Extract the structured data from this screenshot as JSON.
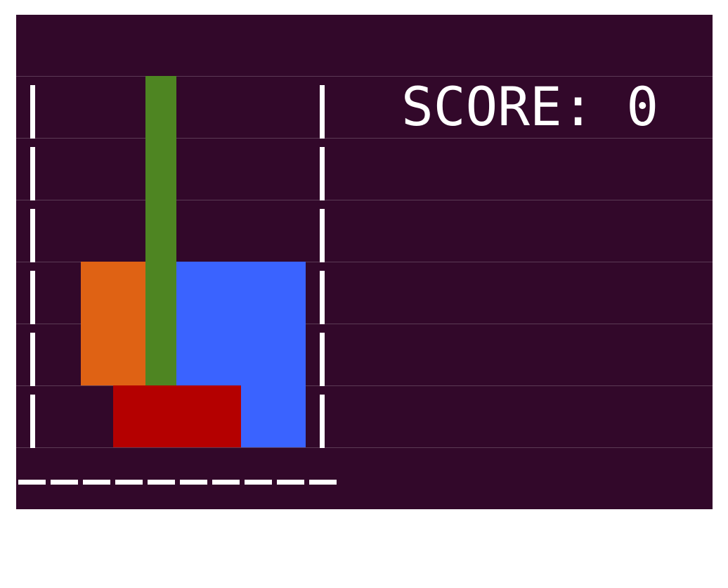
{
  "score": {
    "label": "SCORE:",
    "value": "0"
  },
  "board": {
    "background": "#32082a",
    "grid_color": "#5b3a55",
    "wall_color": "#ffffff"
  },
  "blocks": [
    {
      "name": "orange-block",
      "color": "#df6214"
    },
    {
      "name": "green-block",
      "color": "#4e8522"
    },
    {
      "name": "blue-block",
      "color": "#3a63ff"
    },
    {
      "name": "red-block",
      "color": "#b40000"
    }
  ]
}
